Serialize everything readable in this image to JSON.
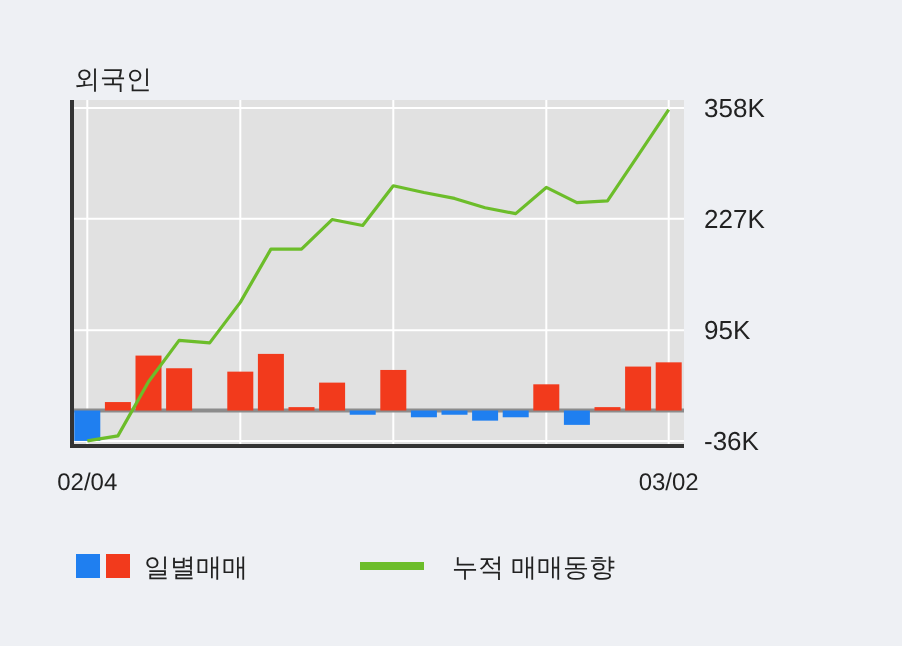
{
  "chart_data": {
    "type": "bar",
    "title": "외국인",
    "categories": [
      "02/04",
      null,
      null,
      null,
      null,
      null,
      null,
      null,
      null,
      null,
      null,
      null,
      null,
      null,
      null,
      null,
      null,
      null,
      null,
      "03/02"
    ],
    "series": [
      {
        "name": "일별매매",
        "colors": [
          "#1f7ff0",
          "#f23a1c",
          "#f23a1c",
          "#f23a1c",
          "#f23a1c",
          "#f23a1c",
          "#f23a1c",
          "#f23a1c",
          "#f23a1c",
          "#1f7ff0",
          "#f23a1c",
          "#1f7ff0",
          "#1f7ff0",
          "#1f7ff0",
          "#1f7ff0",
          "#f23a1c",
          "#1f7ff0",
          "#f23a1c",
          "#f23a1c",
          "#f23a1c"
        ],
        "values": [
          -36000,
          10000,
          65000,
          50000,
          0,
          46000,
          67000,
          4000,
          33000,
          -5000,
          48000,
          -8000,
          -5000,
          -12000,
          -8000,
          31000,
          -17000,
          4000,
          52000,
          57000
        ]
      },
      {
        "name": "누적 매매동향",
        "type": "line",
        "color": "#6cbd2a",
        "values": [
          -36000,
          -30000,
          34000,
          83000,
          80000,
          128000,
          191000,
          191000,
          226000,
          219000,
          266000,
          258000,
          251000,
          240000,
          233000,
          264000,
          246000,
          248000,
          302000,
          356000
        ]
      }
    ],
    "ylim": [
      -42000,
      358000
    ],
    "yticks": [
      {
        "value": -36000,
        "label": "-36K"
      },
      {
        "value": 95000,
        "label": "95K"
      },
      {
        "value": 227000,
        "label": "227K"
      },
      {
        "value": 358000,
        "label": "358K"
      }
    ],
    "ref_lines": [
      {
        "axis": "y",
        "value": 0,
        "color": "#8c8c8c"
      }
    ],
    "grid": true,
    "legend": "bottom",
    "marker": "none",
    "line_style": "solid"
  }
}
